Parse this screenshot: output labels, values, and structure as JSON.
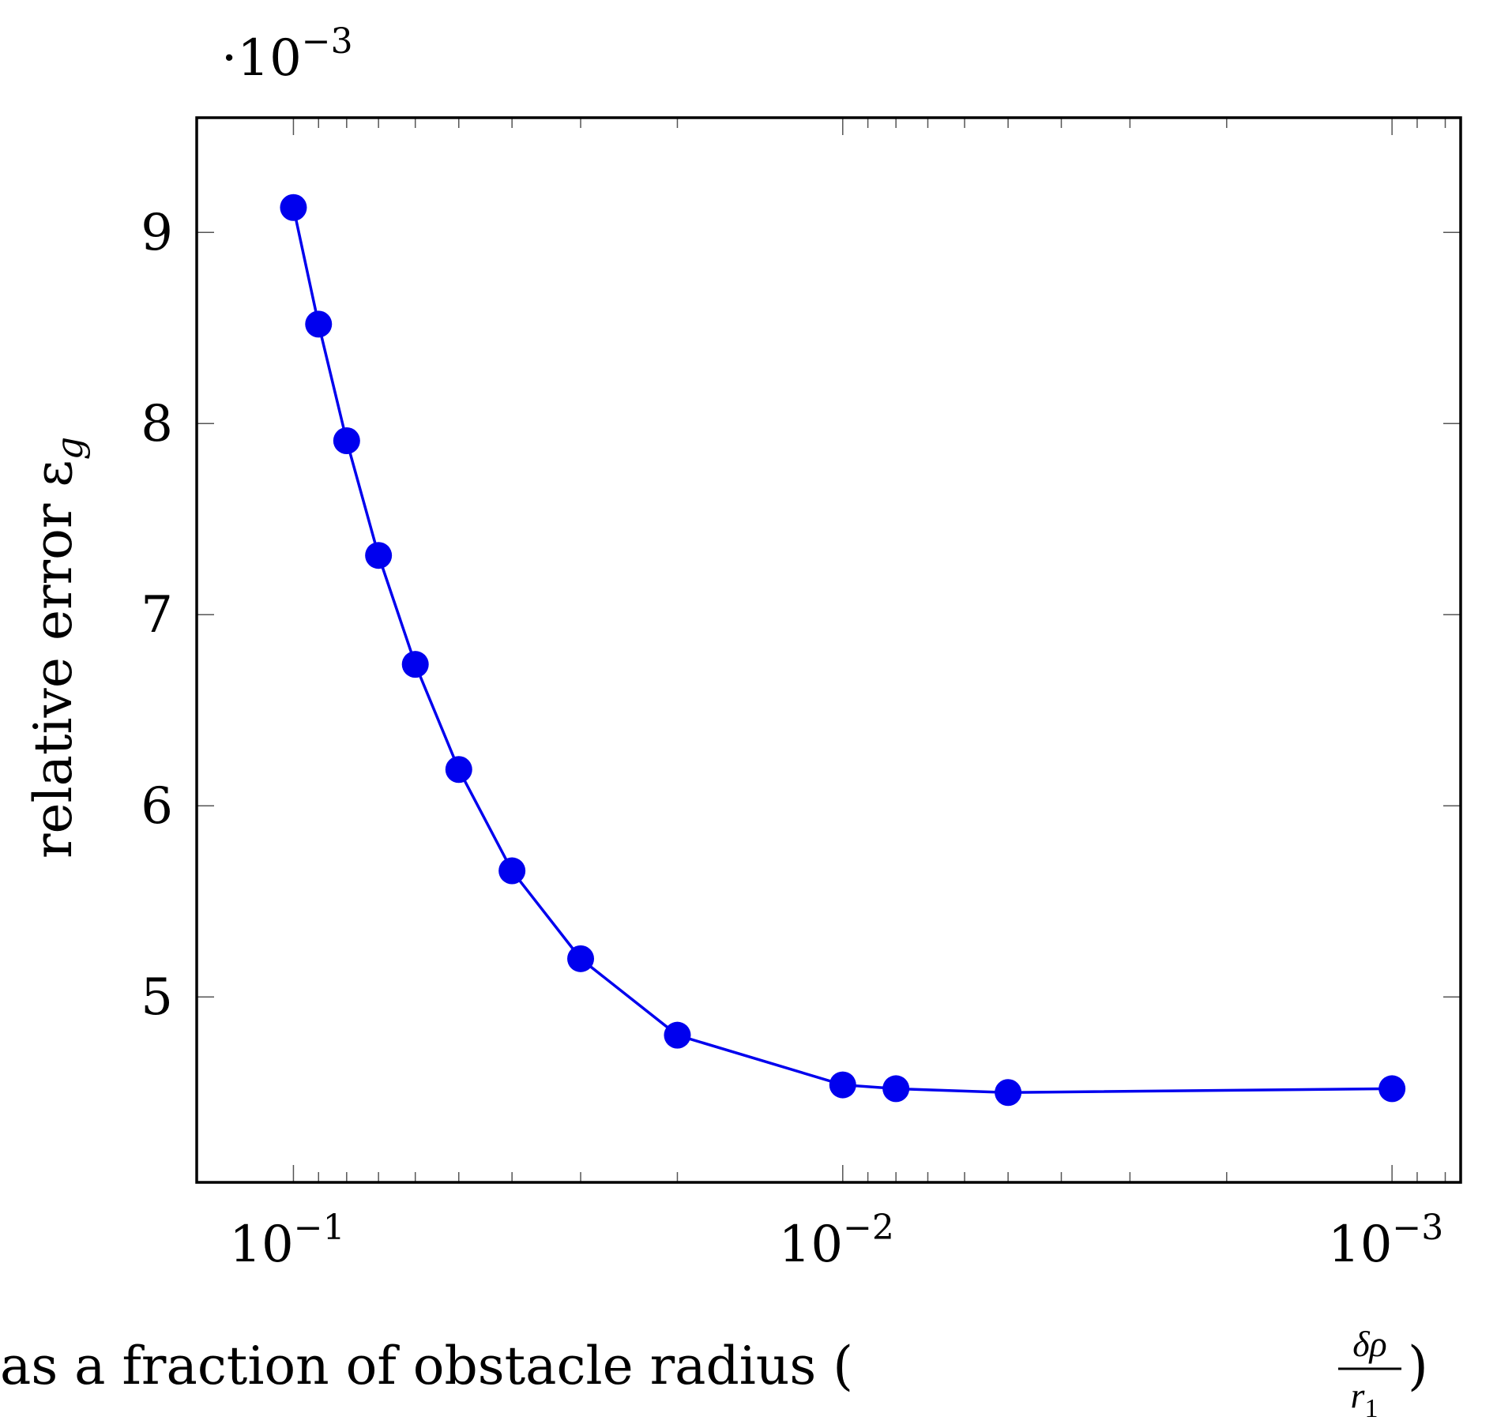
{
  "chart_data": {
    "type": "line",
    "title": "",
    "x_scale": "log",
    "x_reversed": true,
    "x_range": [
      0.15,
      0.00075
    ],
    "y_range": [
      4.03,
      9.6
    ],
    "y_multiplier": "·10",
    "y_multiplier_exp": "−3",
    "xlabel": "step as a fraction of obstacle radius (",
    "xlabel_frac_num": "δρ",
    "xlabel_frac_den": "r",
    "xlabel_frac_den_sub": "1",
    "xlabel_close": ")",
    "ylabel": "relative error ε",
    "ylabel_sub": "g",
    "x_ticks": [
      {
        "value": 0.1,
        "base": "10",
        "exp": "−1"
      },
      {
        "value": 0.01,
        "base": "10",
        "exp": "−2"
      },
      {
        "value": 0.001,
        "base": "10",
        "exp": "−3"
      }
    ],
    "y_ticks": [
      5,
      6,
      7,
      8,
      9
    ],
    "series": [
      {
        "color": "#0000ee",
        "marker": "circle",
        "x": [
          0.1,
          0.09,
          0.08,
          0.07,
          0.06,
          0.05,
          0.04,
          0.03,
          0.02,
          0.01,
          0.008,
          0.005,
          0.001
        ],
        "y": [
          9.13,
          8.52,
          7.91,
          7.31,
          6.74,
          6.19,
          5.66,
          5.2,
          4.8,
          4.54,
          4.52,
          4.5,
          4.52
        ]
      }
    ]
  }
}
